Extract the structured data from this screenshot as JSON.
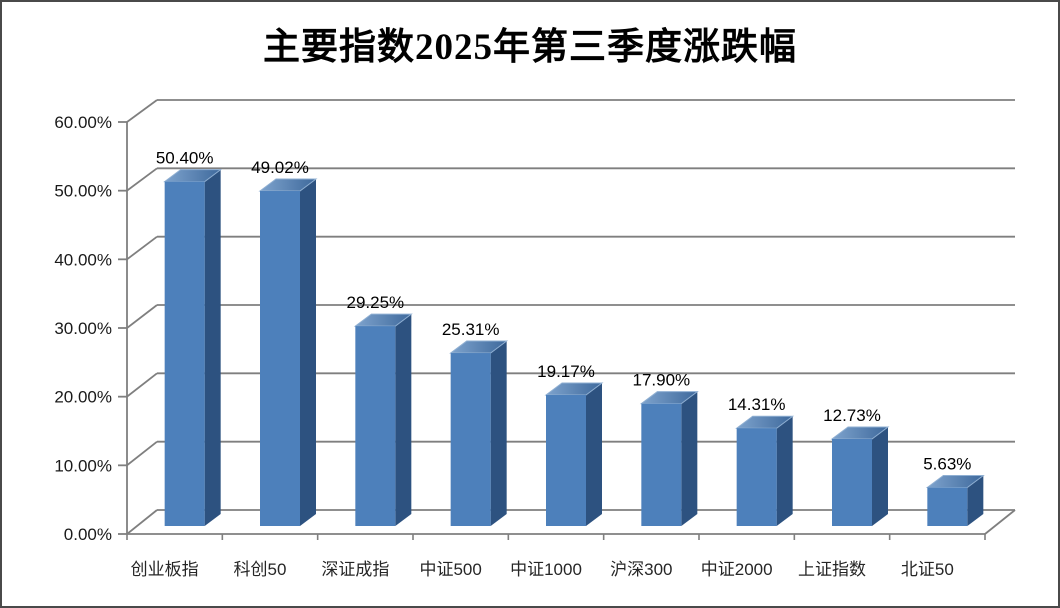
{
  "chart_data": {
    "type": "bar",
    "style": "3d-column",
    "title": "主要指数2025年第三季度涨跌幅",
    "categories": [
      "创业板指",
      "科创50",
      "深证成指",
      "中证500",
      "中证1000",
      "沪深300",
      "中证2000",
      "上证指数",
      "北证50"
    ],
    "values": [
      50.4,
      49.02,
      29.25,
      25.31,
      19.17,
      17.9,
      14.31,
      12.73,
      5.63
    ],
    "data_labels": [
      "50.40%",
      "49.02%",
      "29.25%",
      "25.31%",
      "19.17%",
      "17.90%",
      "14.31%",
      "12.73%",
      "5.63%"
    ],
    "y_ticks": [
      "0.00%",
      "10.00%",
      "20.00%",
      "30.00%",
      "40.00%",
      "50.00%",
      "60.00%"
    ],
    "ylim": [
      0,
      60
    ],
    "xlabel": "",
    "ylabel": "",
    "grid": true,
    "legend": "none",
    "colors": {
      "bar_front": "#4d80bb",
      "bar_side": "#2d5280",
      "bar_top_light": "#7ea3cd",
      "bar_top_dark": "#3e699c",
      "bar_top_edge": "#8fafd2",
      "grid": "#7f7f7f",
      "axis": "#7f7f7f",
      "tick_label": "#1a1a1a",
      "category_label": "#262626",
      "data_label": "#000000",
      "title": "#000000"
    }
  }
}
